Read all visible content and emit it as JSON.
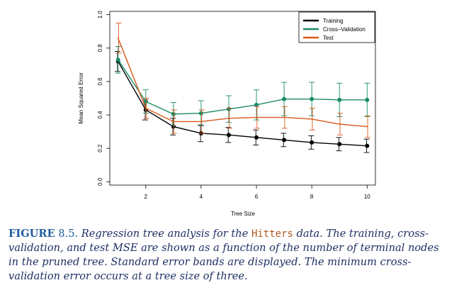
{
  "chart_data": {
    "type": "line",
    "xlabel": "Tree Size",
    "ylabel": "Mean Squared Error",
    "xlim": [
      0.7,
      10.3
    ],
    "ylim": [
      -0.02,
      1.02
    ],
    "x_ticks": [
      2,
      4,
      6,
      8,
      10
    ],
    "y_ticks": [
      0.0,
      0.2,
      0.4,
      0.6,
      0.8,
      1.0
    ],
    "y_tick_labels": [
      "0.0",
      "0.2",
      "0.4",
      "0.6",
      "0.8",
      "1.0"
    ],
    "legend_position": "top-right",
    "grid": false,
    "x": [
      1,
      2,
      3,
      4,
      5,
      6,
      7,
      8,
      9,
      10
    ],
    "series": [
      {
        "name": "Training",
        "color": "#000000",
        "marker": "circle",
        "values": [
          0.72,
          0.43,
          0.33,
          0.29,
          0.28,
          0.265,
          0.25,
          0.235,
          0.225,
          0.215
        ],
        "error": [
          0.06,
          0.06,
          0.05,
          0.05,
          0.045,
          0.045,
          0.04,
          0.04,
          0.04,
          0.04
        ]
      },
      {
        "name": "Cross–Validation",
        "color": "#1a8a6a",
        "marker": "circle",
        "values": [
          0.73,
          0.48,
          0.405,
          0.41,
          0.435,
          0.46,
          0.495,
          0.495,
          0.49,
          0.49
        ],
        "error": [
          0.08,
          0.07,
          0.07,
          0.075,
          0.08,
          0.09,
          0.1,
          0.1,
          0.1,
          0.1
        ]
      },
      {
        "name": "Test",
        "color": "#d9591a",
        "marker": "none",
        "values": [
          0.86,
          0.44,
          0.36,
          0.36,
          0.38,
          0.385,
          0.385,
          0.375,
          0.345,
          0.33
        ],
        "error": [
          0.09,
          0.06,
          0.07,
          0.07,
          0.06,
          0.065,
          0.065,
          0.065,
          0.065,
          0.065
        ]
      }
    ]
  },
  "caption": {
    "label": "FIGURE",
    "number": "8.5.",
    "text_before": "Regression tree analysis for the",
    "dataset": "Hitters",
    "text_after": "data. The training, cross-validation, and test MSE are shown as a function of the number of terminal nodes in the pruned tree. Standard error bands are displayed. The minimum cross-validation error occurs at a tree size of three."
  }
}
